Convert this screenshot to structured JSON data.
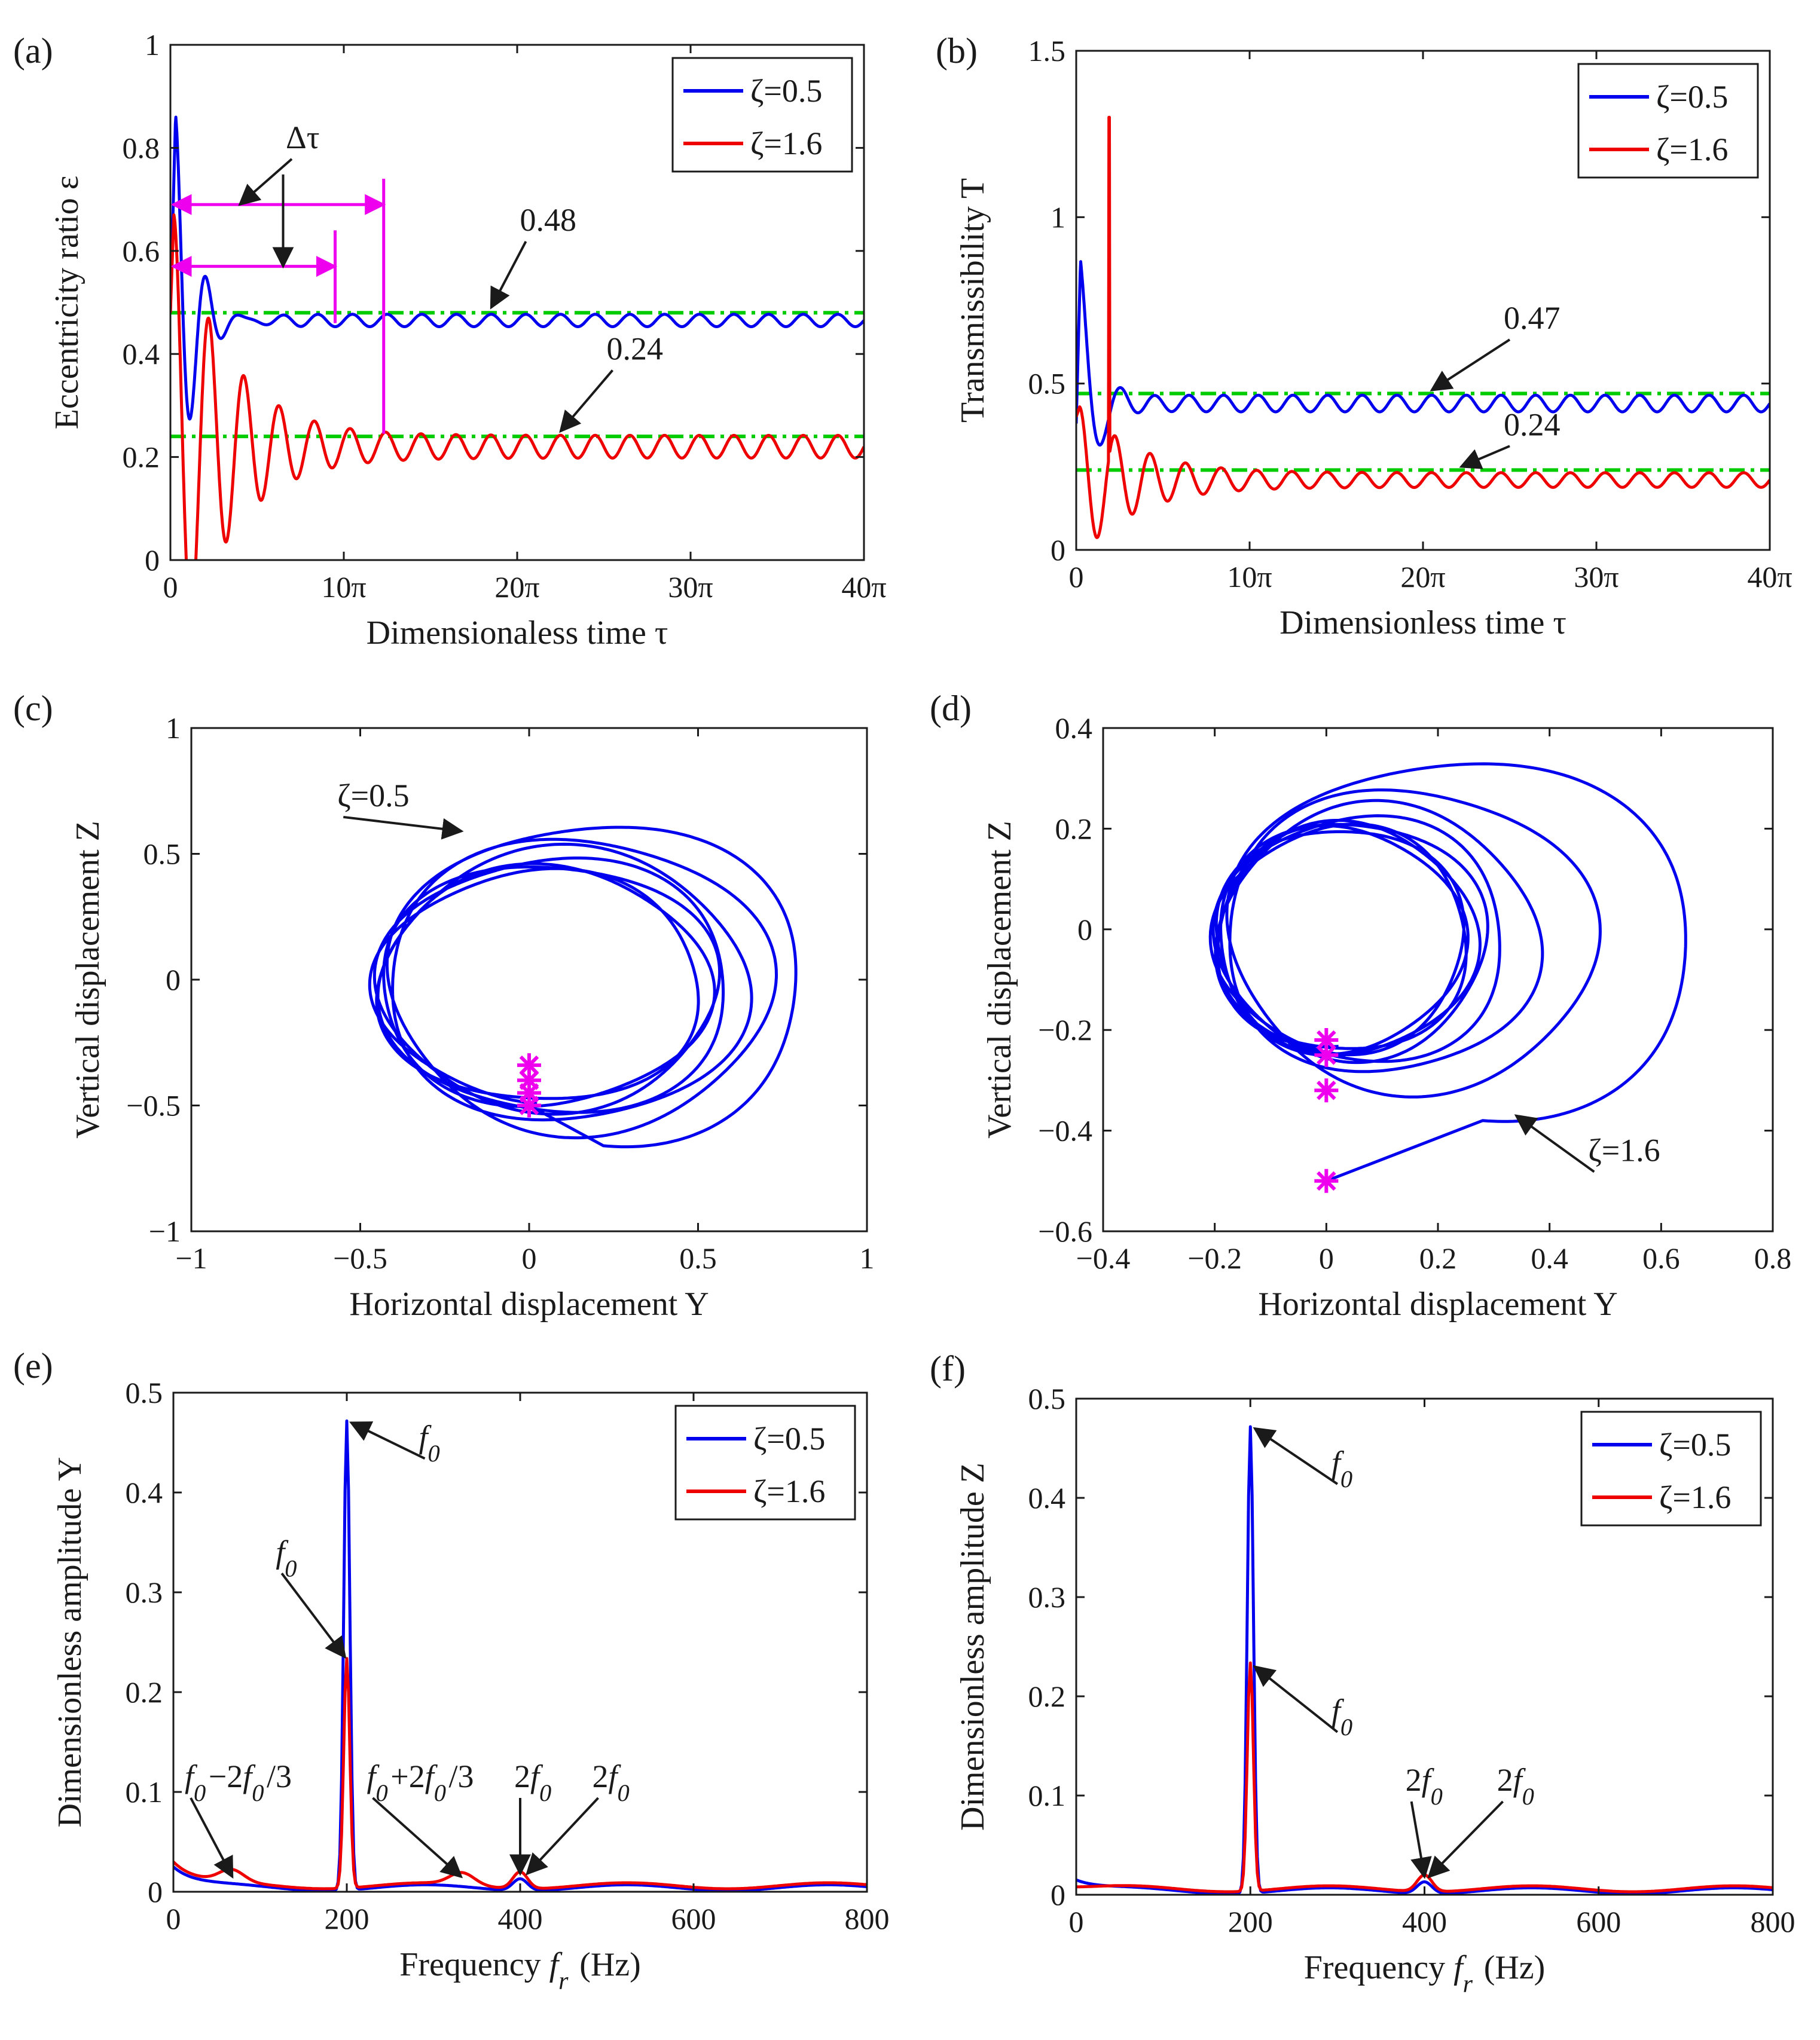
{
  "figure": {
    "colors": {
      "blue": "#0000ee",
      "red": "#ee0000",
      "green": "#00cc00",
      "magenta": "#ee00ee",
      "axis": "#1a1a1a"
    }
  },
  "chart_data": [
    {
      "id": "a",
      "type": "line",
      "panel_label": "(a)",
      "xlabel": "Dimensionaless time τ",
      "ylabel": "Eccentricity ratio ε",
      "xlim": [
        0,
        40
      ],
      "ylim": [
        0,
        1
      ],
      "xticks": [
        {
          "v": 0,
          "label": "0"
        },
        {
          "v": 10,
          "label": "10π"
        },
        {
          "v": 20,
          "label": "20π"
        },
        {
          "v": 30,
          "label": "30π"
        },
        {
          "v": 40,
          "label": "40π"
        }
      ],
      "yticks": [
        {
          "v": 0,
          "label": "0"
        },
        {
          "v": 0.2,
          "label": "0.2"
        },
        {
          "v": 0.4,
          "label": "0.4"
        },
        {
          "v": 0.6,
          "label": "0.6"
        },
        {
          "v": 0.8,
          "label": "0.8"
        },
        {
          "v": 1,
          "label": "1"
        }
      ],
      "legend": {
        "position": "top-right",
        "entries": [
          {
            "label": "ζ=0.5",
            "color": "blue"
          },
          {
            "label": "ζ=1.6",
            "color": "red"
          }
        ]
      },
      "series": [
        {
          "name": "ζ=0.5",
          "color": "blue",
          "kind": "transient",
          "params": {
            "mean": 0.465,
            "amp": 0.012,
            "freq": 1,
            "A": 0.4,
            "decay": 0.9,
            "f2": 1.15,
            "start": 0.48,
            "t0": 0.3
          }
        },
        {
          "name": "ζ=1.6",
          "color": "red",
          "kind": "transient",
          "params": {
            "mean": 0.22,
            "amp": 0.022,
            "freq": 1,
            "A": 0.45,
            "decay": 0.32,
            "f2": 1.0,
            "start": 0.48,
            "t0": 0.2
          }
        }
      ],
      "reference_lines": [
        {
          "value": 0.48,
          "label": "0.48"
        },
        {
          "value": 0.24,
          "label": "0.24"
        }
      ],
      "annotations": [
        {
          "text": "0.48",
          "tx": 20.5,
          "ty": 0.63,
          "ax": 18.5,
          "ay": 0.49
        },
        {
          "text": "0.24",
          "tx": 25.5,
          "ty": 0.38,
          "ax": 22.5,
          "ay": 0.25
        },
        {
          "text": "Δτ",
          "tx": 7.0,
          "ty": 0.79,
          "ax": 4.0,
          "ay": 0.69
        },
        {
          "text": "",
          "tx": 6.5,
          "ty": 0.76,
          "ax": 6.5,
          "ay": 0.57
        }
      ],
      "delta_markers": {
        "color": "magenta",
        "items": [
          {
            "y": 0.69,
            "x_end": 12.3,
            "vline_top": 0.74,
            "vline_bottom": 0.245
          },
          {
            "y": 0.57,
            "x_end": 9.5,
            "vline_top": 0.64,
            "vline_bottom": 0.46
          }
        ]
      }
    },
    {
      "id": "b",
      "type": "line",
      "panel_label": "(b)",
      "xlabel": "Dimensionless time τ",
      "ylabel": "Transmissibility T",
      "xlim": [
        0,
        40
      ],
      "ylim": [
        0,
        1.5
      ],
      "xticks": [
        {
          "v": 0,
          "label": "0"
        },
        {
          "v": 10,
          "label": "10π"
        },
        {
          "v": 20,
          "label": "20π"
        },
        {
          "v": 30,
          "label": "30π"
        },
        {
          "v": 40,
          "label": "40π"
        }
      ],
      "yticks": [
        {
          "v": 0,
          "label": "0"
        },
        {
          "v": 0.5,
          "label": "0.5"
        },
        {
          "v": 1,
          "label": "1"
        },
        {
          "v": 1.5,
          "label": "1.5"
        }
      ],
      "legend": {
        "position": "top-right",
        "entries": [
          {
            "label": "ζ=0.5",
            "color": "blue"
          },
          {
            "label": "ζ=1.6",
            "color": "red"
          }
        ]
      },
      "series": [
        {
          "name": "ζ=0.5",
          "color": "blue",
          "kind": "transient",
          "params": {
            "mean": 0.44,
            "amp": 0.025,
            "freq": 1,
            "A": 0.43,
            "decay": 1.2,
            "f2": 0.8,
            "start": 0.38,
            "t0": 0.25
          }
        },
        {
          "name": "ζ=1.6",
          "color": "red",
          "kind": "transient",
          "params": {
            "mean": 0.21,
            "amp": 0.022,
            "freq": 1,
            "A": 0.22,
            "decay": 0.3,
            "f2": 1.0,
            "start": 0.4,
            "t0": 0.2,
            "spike_t": 1.9,
            "spike_v": 1.3
          }
        }
      ],
      "reference_lines": [
        {
          "value": 0.47,
          "label": "0.47"
        },
        {
          "value": 0.24,
          "label": "0.24"
        }
      ],
      "annotations": [
        {
          "text": "0.47",
          "tx": 25.0,
          "ty": 0.65,
          "ax": 20.5,
          "ay": 0.48
        },
        {
          "text": "0.24",
          "tx": 25.0,
          "ty": 0.33,
          "ax": 22.2,
          "ay": 0.25
        }
      ]
    },
    {
      "id": "c",
      "type": "line",
      "panel_label": "(c)",
      "xlabel": "Horizontal displacement Y",
      "ylabel": "Vertical displacement Z",
      "xlim": [
        -1,
        1
      ],
      "ylim": [
        -1,
        1
      ],
      "xticks": [
        {
          "v": -1,
          "label": "−1"
        },
        {
          "v": -0.5,
          "label": "−0.5"
        },
        {
          "v": 0,
          "label": "0"
        },
        {
          "v": 0.5,
          "label": "0.5"
        },
        {
          "v": 1,
          "label": "1"
        }
      ],
      "yticks": [
        {
          "v": -1,
          "label": "−1"
        },
        {
          "v": -0.5,
          "label": "−0.5"
        },
        {
          "v": 0,
          "label": "0"
        },
        {
          "v": 0.5,
          "label": "0.5"
        },
        {
          "v": 1,
          "label": "1"
        }
      ],
      "series": [
        {
          "name": "ζ=0.5",
          "color": "blue",
          "kind": "orbit",
          "params": {
            "cx0": 0.22,
            "cy0": 0.0,
            "rx0": 0.62,
            "ry0": 0.66,
            "cx1": 0.0,
            "cy1": -0.03,
            "rx1": 0.46,
            "ry1": 0.43,
            "decay": 0.32,
            "turns": 7,
            "ph": -1.5708,
            "start": [
              0,
              -0.5
            ]
          }
        }
      ],
      "markers": [
        [
          0,
          -0.34
        ],
        [
          0,
          -0.4
        ],
        [
          0,
          -0.45
        ],
        [
          0,
          -0.5
        ]
      ],
      "annotations": [
        {
          "text": "ζ=0.5",
          "tx": -0.55,
          "ty": 0.67,
          "ax": -0.2,
          "ay": 0.59
        }
      ]
    },
    {
      "id": "d",
      "type": "line",
      "panel_label": "(d)",
      "xlabel": "Horizontal displacement Y",
      "ylabel": "Vertical displacement Z",
      "xlim": [
        -0.4,
        0.8
      ],
      "ylim": [
        -0.6,
        0.4
      ],
      "xticks": [
        {
          "v": -0.4,
          "label": "−0.4"
        },
        {
          "v": -0.2,
          "label": "−0.2"
        },
        {
          "v": 0,
          "label": "0"
        },
        {
          "v": 0.2,
          "label": "0.2"
        },
        {
          "v": 0.4,
          "label": "0.4"
        },
        {
          "v": 0.6,
          "label": "0.6"
        },
        {
          "v": 0.8,
          "label": "0.8"
        }
      ],
      "yticks": [
        {
          "v": -0.6,
          "label": "−0.6"
        },
        {
          "v": -0.4,
          "label": "−0.4"
        },
        {
          "v": -0.2,
          "label": "−0.2"
        },
        {
          "v": 0,
          "label": "0"
        },
        {
          "v": 0.2,
          "label": "0.2"
        },
        {
          "v": 0.4,
          "label": "0.4"
        }
      ],
      "series": [
        {
          "name": "ζ=1.6",
          "color": "blue",
          "kind": "orbit",
          "params": {
            "cx0": 0.28,
            "cy0": 0.0,
            "rx0": 0.44,
            "ry0": 0.38,
            "cx1": 0.02,
            "cy1": -0.02,
            "rx1": 0.22,
            "ry1": 0.22,
            "decay": 0.55,
            "turns": 9,
            "ph": -1.5708,
            "start": [
              0,
              -0.5
            ]
          }
        }
      ],
      "markers": [
        [
          0,
          -0.22
        ],
        [
          0,
          -0.25
        ],
        [
          0,
          -0.32
        ],
        [
          0,
          -0.5
        ]
      ],
      "annotations": [
        {
          "text": "ζ=1.6",
          "tx": 0.48,
          "ty": -0.47,
          "ax": 0.34,
          "ay": -0.37
        }
      ]
    },
    {
      "id": "e",
      "type": "line",
      "panel_label": "(e)",
      "xlabel": "Frequency fr (Hz)",
      "ylabel": "Dimensionless amplitude Y",
      "xlim": [
        0,
        800
      ],
      "ylim": [
        0,
        0.5
      ],
      "xticks": [
        {
          "v": 0,
          "label": "0"
        },
        {
          "v": 200,
          "label": "200"
        },
        {
          "v": 400,
          "label": "400"
        },
        {
          "v": 600,
          "label": "600"
        },
        {
          "v": 800,
          "label": "800"
        }
      ],
      "yticks": [
        {
          "v": 0,
          "label": "0"
        },
        {
          "v": 0.1,
          "label": "0.1"
        },
        {
          "v": 0.2,
          "label": "0.2"
        },
        {
          "v": 0.3,
          "label": "0.3"
        },
        {
          "v": 0.4,
          "label": "0.4"
        },
        {
          "v": 0.5,
          "label": "0.5"
        }
      ],
      "legend": {
        "position": "top-right",
        "entries": [
          {
            "label": "ζ=0.5",
            "color": "blue"
          },
          {
            "label": "ζ=1.6",
            "color": "red"
          }
        ]
      },
      "series": [
        {
          "name": "ζ=0.5",
          "color": "blue",
          "kind": "spectrum",
          "params": {
            "peak_f": 200,
            "peak_v": 0.47,
            "h2": 0.012,
            "b0": 0.025,
            "b1": 0.004
          }
        },
        {
          "name": "ζ=1.6",
          "color": "red",
          "kind": "spectrum",
          "params": {
            "peak_f": 200,
            "peak_v": 0.23,
            "h2": 0.017,
            "b0": 0.03,
            "b1": 0.006,
            "side": 0.012
          }
        }
      ],
      "annotations": [
        {
          "text": "f0",
          "tx": 290,
          "ty": 0.44,
          "ax": 205,
          "ay": 0.47
        },
        {
          "text": "f0",
          "tx": 125,
          "ty": 0.325,
          "ax": 198,
          "ay": 0.235
        },
        {
          "text": "f0−2f0/3",
          "tx": 20,
          "ty": 0.1,
          "ax": 68,
          "ay": 0.015
        },
        {
          "text": "f0+2f0/3",
          "tx": 230,
          "ty": 0.1,
          "ax": 332,
          "ay": 0.015
        },
        {
          "text": "2f0",
          "tx": 400,
          "ty": 0.1,
          "ax": 400,
          "ay": 0.018
        },
        {
          "text": "2f0",
          "tx": 490,
          "ty": 0.1,
          "ax": 408,
          "ay": 0.018
        }
      ]
    },
    {
      "id": "f",
      "type": "line",
      "panel_label": "(f)",
      "xlabel": "Frequency fr (Hz)",
      "ylabel": "Dimensionless amplitude Z",
      "xlim": [
        0,
        800
      ],
      "ylim": [
        0,
        0.5
      ],
      "xticks": [
        {
          "v": 0,
          "label": "0"
        },
        {
          "v": 200,
          "label": "200"
        },
        {
          "v": 400,
          "label": "400"
        },
        {
          "v": 600,
          "label": "600"
        },
        {
          "v": 800,
          "label": "800"
        }
      ],
      "yticks": [
        {
          "v": 0,
          "label": "0"
        },
        {
          "v": 0.1,
          "label": "0.1"
        },
        {
          "v": 0.2,
          "label": "0.2"
        },
        {
          "v": 0.3,
          "label": "0.3"
        },
        {
          "v": 0.4,
          "label": "0.4"
        },
        {
          "v": 0.5,
          "label": "0.5"
        }
      ],
      "legend": {
        "position": "top-right",
        "entries": [
          {
            "label": "ζ=0.5",
            "color": "blue"
          },
          {
            "label": "ζ=1.6",
            "color": "red"
          }
        ]
      },
      "series": [
        {
          "name": "ζ=0.5",
          "color": "blue",
          "kind": "spectrum",
          "params": {
            "peak_f": 200,
            "peak_v": 0.47,
            "h2": 0.012,
            "b0": 0.015,
            "b1": 0.004
          }
        },
        {
          "name": "ζ=1.6",
          "color": "red",
          "kind": "spectrum",
          "params": {
            "peak_f": 200,
            "peak_v": 0.23,
            "h2": 0.017,
            "b0": 0.008,
            "b1": 0.006
          }
        }
      ],
      "annotations": [
        {
          "text": "f0",
          "tx": 300,
          "ty": 0.42,
          "ax": 205,
          "ay": 0.47
        },
        {
          "text": "f0",
          "tx": 300,
          "ty": 0.17,
          "ax": 205,
          "ay": 0.23
        },
        {
          "text": "2f0",
          "tx": 385,
          "ty": 0.1,
          "ax": 400,
          "ay": 0.018
        },
        {
          "text": "2f0",
          "tx": 490,
          "ty": 0.1,
          "ax": 405,
          "ay": 0.018
        }
      ]
    }
  ]
}
